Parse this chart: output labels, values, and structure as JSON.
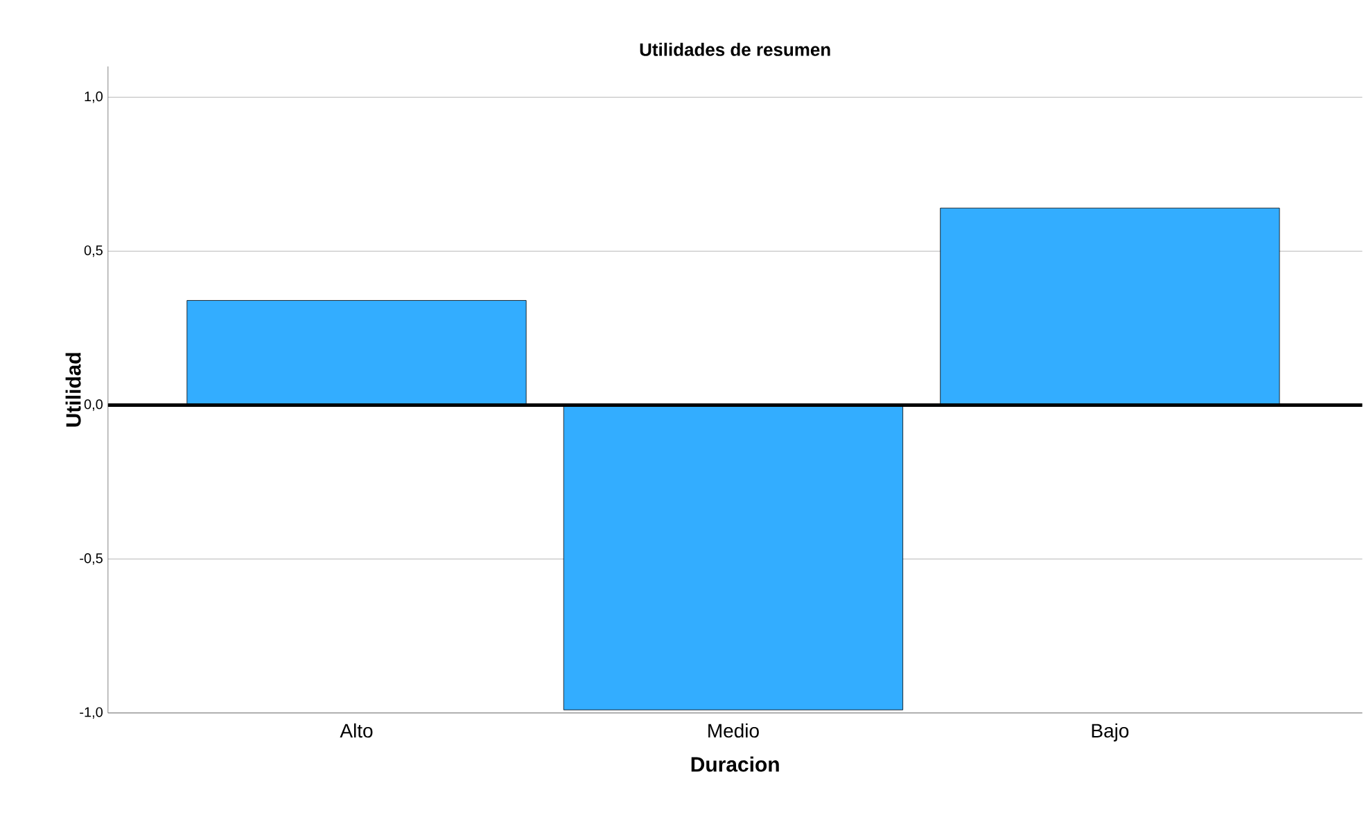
{
  "chart_data": {
    "type": "bar",
    "title": "Utilidades de resumen",
    "xlabel": "Duracion",
    "ylabel": "Utilidad",
    "categories": [
      "Alto",
      "Medio",
      "Bajo"
    ],
    "values": [
      0.34,
      -0.99,
      0.64
    ],
    "color": "#33adff",
    "ylim": [
      -1.0,
      1.1
    ],
    "yticks": [
      {
        "value": -1.0,
        "label": "-1,0"
      },
      {
        "value": -0.5,
        "label": "-0,5"
      },
      {
        "value": 0.0,
        "label": "0,0"
      },
      {
        "value": 0.5,
        "label": "0,5"
      },
      {
        "value": 1.0,
        "label": "1,0"
      }
    ],
    "grid": "y",
    "ref_lines": [
      {
        "axis": "y",
        "value": 0,
        "color": "#000000"
      }
    ]
  }
}
